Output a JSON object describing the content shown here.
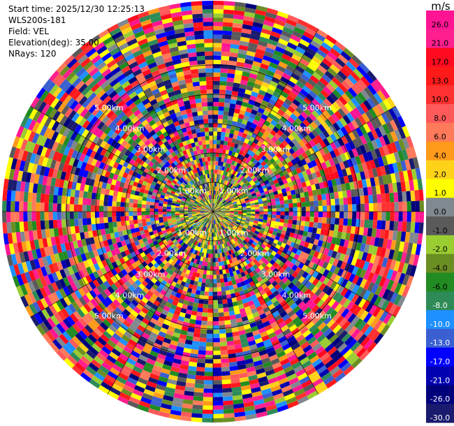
{
  "info": {
    "start_time": "Start time: 2025/12/30 12:25:13",
    "instrument": "WLS200s-181",
    "field": "Field: VEL",
    "elevation": "Elevation(deg): 35.00",
    "nrays": "NRays: 120"
  },
  "colorbar": {
    "units": "m/s",
    "ticks": [
      "26.0",
      "21.0",
      "17.0",
      "13.0",
      "10.0",
      "8.0",
      "6.0",
      "4.0",
      "2.0",
      "1.0",
      "0.0",
      "-1.0",
      "-2.0",
      "-4.0",
      "-6.0",
      "-8.0",
      "-10.0",
      "-13.0",
      "-17.0",
      "-21.0",
      "-26.0",
      "-30.0"
    ],
    "colors": [
      "#ff1493",
      "#ff1f8f",
      "#ff0a1f",
      "#ff1a1a",
      "#ff3030",
      "#ff5a5a",
      "#ff7a5a",
      "#ff9a1a",
      "#ffd21a",
      "#ffff00",
      "#808890",
      "#5a5a5a",
      "#9acd32",
      "#6b8e23",
      "#228b22",
      "#2e8b57",
      "#1e90ff",
      "#3a5fd0",
      "#0000ff",
      "#0000b0",
      "#00007a",
      "#1a1a6e"
    ]
  },
  "chart_data": {
    "type": "polar-ppi",
    "field": "VEL",
    "units": "m/s",
    "nrays": 120,
    "elevation_deg": 35.0,
    "range_ring_labels": [
      "1.00km",
      "2.00km",
      "3.00km",
      "4.00km",
      "5.00km"
    ],
    "value_range": [
      -30.0,
      26.0
    ]
  }
}
